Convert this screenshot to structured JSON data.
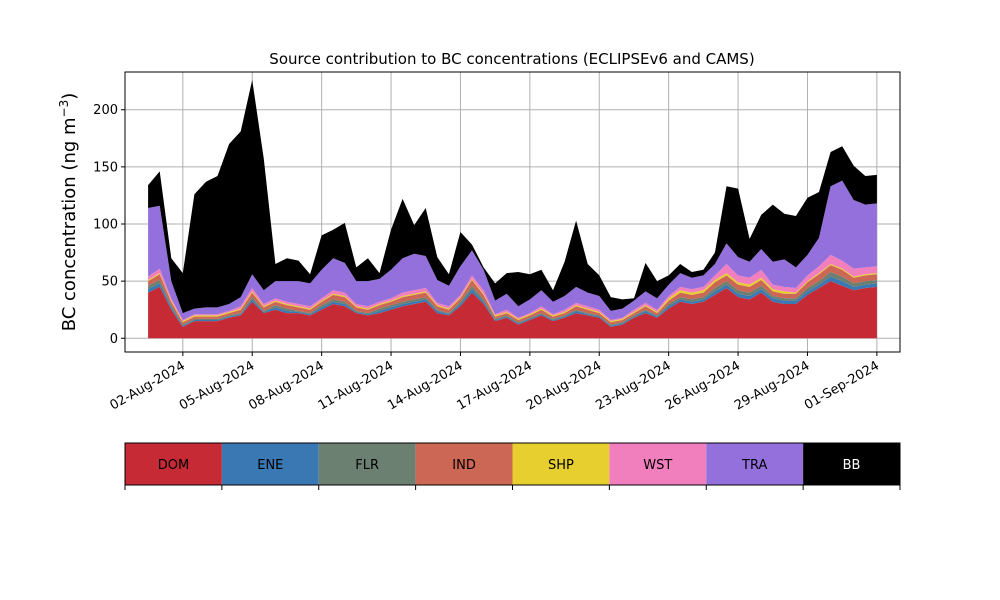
{
  "chart_data": {
    "type": "area",
    "stacked": true,
    "title": "Source contribution to BC concentrations (ECLIPSEv6 and CAMS)",
    "ylabel_text": "BC concentration (ng m",
    "ylabel_sup": "−3",
    "ylabel_close": ")",
    "xlabel": "",
    "ylim": [
      -12,
      233
    ],
    "yticks": [
      0,
      50,
      100,
      150,
      200
    ],
    "grid": true,
    "x_axis": {
      "type": "date",
      "start": "2024-07-30T12:00",
      "end": "2024-09-02T00:00",
      "tick_dates": [
        "2024-08-02",
        "2024-08-05",
        "2024-08-08",
        "2024-08-11",
        "2024-08-14",
        "2024-08-17",
        "2024-08-20",
        "2024-08-23",
        "2024-08-26",
        "2024-08-29",
        "2024-09-01"
      ],
      "tick_labels": [
        "02-Aug-2024",
        "05-Aug-2024",
        "08-Aug-2024",
        "11-Aug-2024",
        "14-Aug-2024",
        "17-Aug-2024",
        "20-Aug-2024",
        "23-Aug-2024",
        "26-Aug-2024",
        "29-Aug-2024",
        "01-Sep-2024"
      ]
    },
    "x": [
      "2024-07-31T12:00",
      "2024-08-01T00:00",
      "2024-08-01T12:00",
      "2024-08-02T00:00",
      "2024-08-02T12:00",
      "2024-08-03T00:00",
      "2024-08-03T12:00",
      "2024-08-04T00:00",
      "2024-08-04T12:00",
      "2024-08-05T00:00",
      "2024-08-05T12:00",
      "2024-08-06T00:00",
      "2024-08-06T12:00",
      "2024-08-07T00:00",
      "2024-08-07T12:00",
      "2024-08-08T00:00",
      "2024-08-08T12:00",
      "2024-08-09T00:00",
      "2024-08-09T12:00",
      "2024-08-10T00:00",
      "2024-08-10T12:00",
      "2024-08-11T00:00",
      "2024-08-11T12:00",
      "2024-08-12T00:00",
      "2024-08-12T12:00",
      "2024-08-13T00:00",
      "2024-08-13T12:00",
      "2024-08-14T00:00",
      "2024-08-14T12:00",
      "2024-08-15T00:00",
      "2024-08-15T12:00",
      "2024-08-16T00:00",
      "2024-08-16T12:00",
      "2024-08-17T00:00",
      "2024-08-17T12:00",
      "2024-08-18T00:00",
      "2024-08-18T12:00",
      "2024-08-19T00:00",
      "2024-08-19T12:00",
      "2024-08-20T00:00",
      "2024-08-20T12:00",
      "2024-08-21T00:00",
      "2024-08-21T12:00",
      "2024-08-22T00:00",
      "2024-08-22T12:00",
      "2024-08-23T00:00",
      "2024-08-23T12:00",
      "2024-08-24T00:00",
      "2024-08-24T12:00",
      "2024-08-25T00:00",
      "2024-08-25T12:00",
      "2024-08-26T00:00",
      "2024-08-26T12:00",
      "2024-08-27T00:00",
      "2024-08-27T12:00",
      "2024-08-28T00:00",
      "2024-08-28T12:00",
      "2024-08-29T00:00",
      "2024-08-29T12:00",
      "2024-08-30T00:00",
      "2024-08-30T12:00",
      "2024-08-31T00:00",
      "2024-08-31T12:00",
      "2024-09-01T00:00"
    ],
    "series": [
      {
        "name": "DOM",
        "color": "#c52a35",
        "values": [
          40,
          45,
          25,
          10,
          15,
          15,
          15,
          18,
          20,
          32,
          22,
          25,
          22,
          22,
          20,
          25,
          30,
          28,
          22,
          20,
          22,
          25,
          28,
          30,
          32,
          22,
          20,
          28,
          40,
          30,
          15,
          18,
          12,
          16,
          20,
          15,
          18,
          22,
          20,
          18,
          10,
          12,
          18,
          22,
          18,
          26,
          32,
          30,
          32,
          38,
          44,
          36,
          34,
          40,
          32,
          30,
          30,
          38,
          44,
          50,
          46,
          42,
          44,
          45
        ]
      },
      {
        "name": "ENE",
        "color": "#3a78b3",
        "values": [
          3,
          3,
          2,
          1,
          1,
          1,
          1,
          1,
          1,
          2,
          1,
          2,
          2,
          1,
          1,
          2,
          2,
          2,
          1,
          1,
          2,
          2,
          2,
          2,
          2,
          2,
          1,
          2,
          3,
          2,
          1,
          1,
          1,
          1,
          1,
          1,
          1,
          2,
          1,
          1,
          1,
          1,
          1,
          2,
          1,
          2,
          2,
          2,
          2,
          3,
          3,
          3,
          3,
          3,
          3,
          3,
          3,
          3,
          3,
          4,
          4,
          3,
          3,
          3
        ]
      },
      {
        "name": "FLR",
        "color": "#6b8070",
        "values": [
          3,
          3,
          2,
          1,
          1,
          1,
          1,
          1,
          1,
          2,
          1,
          2,
          2,
          1,
          1,
          2,
          2,
          2,
          1,
          1,
          2,
          2,
          2,
          2,
          2,
          1,
          1,
          2,
          3,
          2,
          1,
          1,
          1,
          1,
          1,
          1,
          1,
          1,
          1,
          1,
          1,
          1,
          1,
          1,
          1,
          2,
          2,
          2,
          2,
          3,
          3,
          3,
          3,
          3,
          2,
          2,
          2,
          3,
          3,
          4,
          4,
          3,
          3,
          3
        ]
      },
      {
        "name": "IND",
        "color": "#cc6655",
        "values": [
          4,
          5,
          3,
          2,
          2,
          2,
          2,
          2,
          3,
          4,
          3,
          3,
          3,
          3,
          3,
          3,
          4,
          4,
          3,
          3,
          3,
          3,
          4,
          4,
          4,
          3,
          3,
          3,
          5,
          4,
          2,
          2,
          2,
          2,
          3,
          2,
          2,
          3,
          3,
          2,
          2,
          2,
          2,
          3,
          2,
          3,
          4,
          4,
          4,
          5,
          5,
          5,
          5,
          5,
          4,
          4,
          4,
          5,
          6,
          6,
          6,
          5,
          5,
          5
        ]
      },
      {
        "name": "SHP",
        "color": "#e6cf2e",
        "values": [
          1,
          1,
          1,
          1,
          1,
          1,
          1,
          1,
          1,
          1,
          1,
          1,
          1,
          1,
          1,
          1,
          1,
          1,
          1,
          1,
          1,
          1,
          1,
          1,
          1,
          1,
          1,
          1,
          1,
          1,
          1,
          1,
          1,
          1,
          1,
          1,
          1,
          1,
          1,
          1,
          1,
          1,
          1,
          1,
          1,
          2,
          2,
          2,
          2,
          2,
          2,
          2,
          2,
          2,
          2,
          2,
          1,
          1,
          1,
          1,
          1,
          1,
          1,
          1
        ]
      },
      {
        "name": "WST",
        "color": "#f27fbd",
        "values": [
          3,
          4,
          2,
          1,
          1,
          1,
          1,
          1,
          2,
          3,
          2,
          2,
          2,
          2,
          2,
          2,
          3,
          3,
          2,
          2,
          2,
          2,
          3,
          3,
          3,
          2,
          2,
          2,
          3,
          3,
          1,
          2,
          1,
          1,
          2,
          1,
          2,
          2,
          2,
          2,
          1,
          1,
          2,
          2,
          2,
          2,
          3,
          3,
          3,
          4,
          8,
          6,
          6,
          7,
          4,
          4,
          4,
          5,
          6,
          8,
          7,
          7,
          6,
          6
        ]
      },
      {
        "name": "TRA",
        "color": "#9370db",
        "values": [
          60,
          55,
          15,
          6,
          5,
          6,
          6,
          6,
          8,
          12,
          12,
          15,
          18,
          20,
          20,
          25,
          28,
          26,
          20,
          22,
          20,
          25,
          30,
          32,
          28,
          20,
          18,
          25,
          22,
          18,
          12,
          14,
          10,
          12,
          14,
          11,
          12,
          14,
          12,
          12,
          8,
          8,
          8,
          10,
          10,
          10,
          12,
          10,
          10,
          10,
          18,
          16,
          14,
          18,
          20,
          24,
          18,
          18,
          25,
          60,
          70,
          60,
          55,
          55
        ]
      },
      {
        "name": "BB",
        "color": "#000000",
        "values": [
          20,
          30,
          20,
          35,
          100,
          110,
          115,
          140,
          145,
          170,
          115,
          15,
          20,
          18,
          8,
          30,
          25,
          35,
          12,
          20,
          5,
          35,
          52,
          25,
          42,
          20,
          10,
          30,
          5,
          2,
          15,
          18,
          30,
          22,
          18,
          10,
          30,
          58,
          25,
          18,
          12,
          8,
          2,
          25,
          15,
          8,
          8,
          5,
          5,
          10,
          50,
          60,
          20,
          30,
          50,
          40,
          45,
          50,
          40,
          30,
          30,
          30,
          25,
          25
        ]
      }
    ]
  }
}
